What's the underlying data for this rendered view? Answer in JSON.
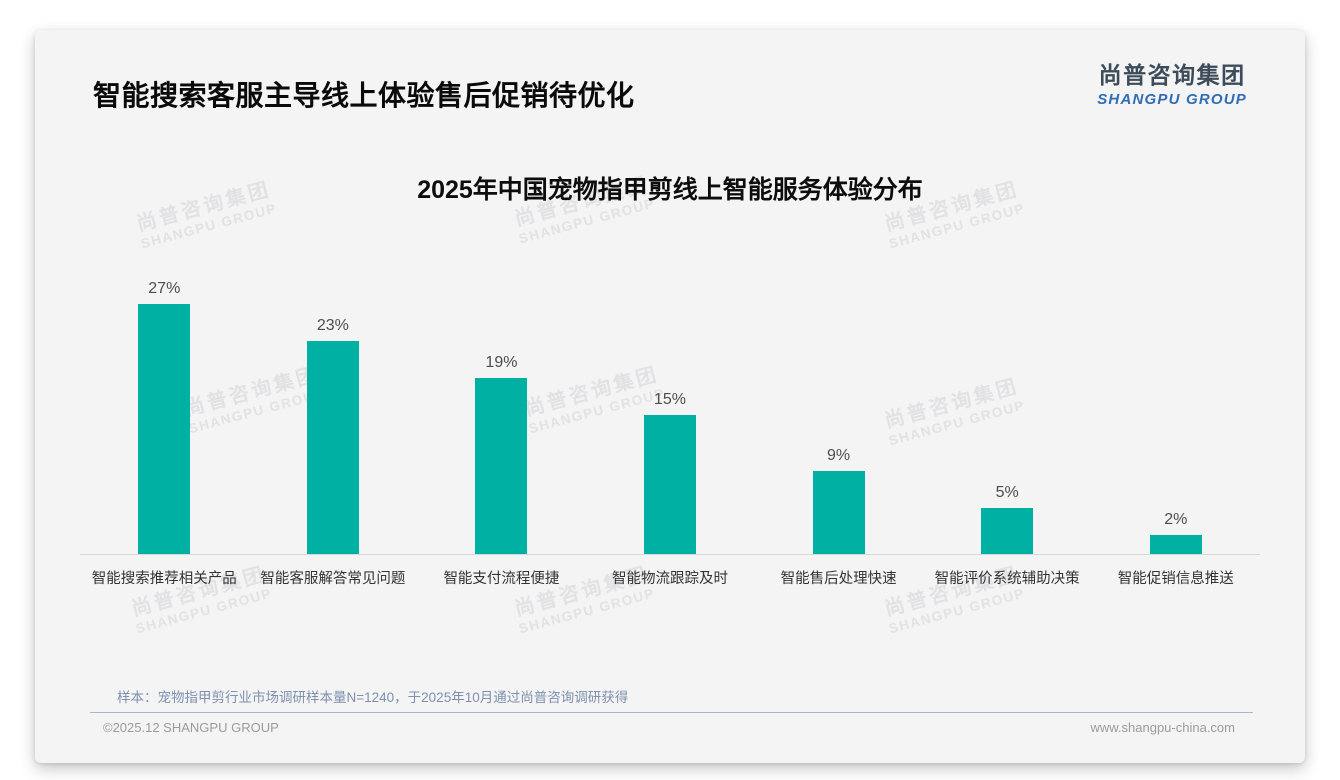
{
  "page": {
    "title": "智能搜索客服主导线上体验售后促销待优化",
    "logo": {
      "cn": "尚普咨询集团",
      "en": "SHANGPU GROUP"
    },
    "watermark": {
      "cn": "尚普咨询集团",
      "en": "SHANGPU GROUP"
    },
    "sample_note": "样本：宠物指甲剪行业市场调研样本量N=1240，于2025年10月通过尚普咨询调研获得",
    "footer": {
      "left": "©2025.12 SHANGPU GROUP",
      "right": "www.shangpu-china.com"
    }
  },
  "colors": {
    "bar": "#00B0A2",
    "card_background": "#f4f4f5",
    "logo_blue": "#2f6db4",
    "logo_dark": "#3d4c5a",
    "note_blue_gray": "#7e90ae",
    "watermark_gray": "#e2e2e4"
  },
  "chart_data": {
    "type": "bar",
    "title": "2025年中国宠物指甲剪线上智能服务体验分布",
    "categories": [
      "智能搜索推荐相关产品",
      "智能客服解答常见问题",
      "智能支付流程便捷",
      "智能物流跟踪及时",
      "智能售后处理快速",
      "智能评价系统辅助决策",
      "智能促销信息推送"
    ],
    "values": [
      27,
      23,
      19,
      15,
      9,
      5,
      2
    ],
    "value_labels": [
      "27%",
      "23%",
      "19%",
      "15%",
      "9%",
      "5%",
      "2%"
    ],
    "unit": "%",
    "bar_color": "#00B0A2",
    "xlabel": "",
    "ylabel": "",
    "ylim": [
      0,
      30
    ],
    "grid": false,
    "legend": false
  }
}
